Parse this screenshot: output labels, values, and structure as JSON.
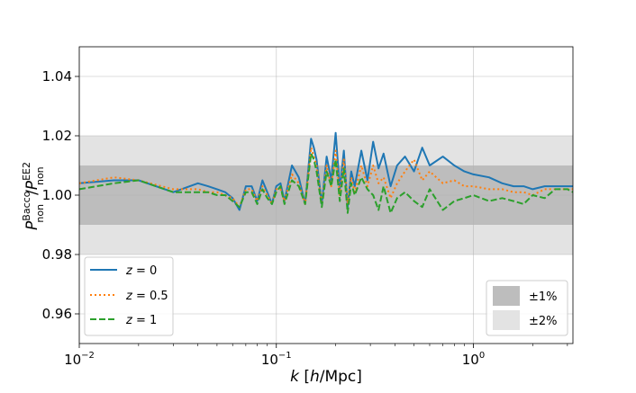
{
  "chart_data": {
    "type": "line",
    "title": "",
    "xlabel": {
      "k": "k",
      "rest": " [",
      "h": "h",
      "tail": "/Mpc]"
    },
    "ylabel": {
      "P": "P",
      "sup": "Bacco",
      "sub": "non",
      "slash": "/",
      "P2": "P",
      "sup2": "EE2",
      "sub2": "non"
    },
    "x_scale": "log",
    "xlim": [
      0.01,
      3.2
    ],
    "ylim": [
      0.95,
      1.05
    ],
    "x_ticks": [
      {
        "value": 0.01,
        "base": "10",
        "exp": "−2"
      },
      {
        "value": 0.1,
        "base": "10",
        "exp": "−1"
      },
      {
        "value": 1,
        "base": "10",
        "exp": "0"
      }
    ],
    "y_ticks": [
      0.96,
      0.98,
      1.0,
      1.02,
      1.04
    ],
    "y_tick_labels": [
      "0.96",
      "0.98",
      "1.00",
      "1.02",
      "1.04"
    ],
    "grid": true,
    "bands": [
      {
        "name": "±1%",
        "lower": 0.99,
        "upper": 1.01,
        "color": "#bdbdbd"
      },
      {
        "name": "±2%",
        "lower": 0.98,
        "upper": 1.02,
        "color": "#e3e3e3"
      }
    ],
    "legend_lines_position": "lower-left",
    "legend_bands_position": "lower-right",
    "series": [
      {
        "name": "z = 0",
        "legend": {
          "var": "z",
          "eq": " = 0"
        },
        "color": "#1f77b4",
        "dash": "solid",
        "x": [
          0.01,
          0.015,
          0.02,
          0.03,
          0.04,
          0.045,
          0.05,
          0.055,
          0.06,
          0.065,
          0.07,
          0.075,
          0.08,
          0.085,
          0.09,
          0.095,
          0.1,
          0.105,
          0.11,
          0.12,
          0.13,
          0.14,
          0.15,
          0.155,
          0.16,
          0.17,
          0.18,
          0.19,
          0.2,
          0.21,
          0.22,
          0.23,
          0.24,
          0.25,
          0.27,
          0.29,
          0.31,
          0.33,
          0.35,
          0.38,
          0.41,
          0.45,
          0.5,
          0.55,
          0.6,
          0.7,
          0.8,
          0.9,
          1.0,
          1.2,
          1.4,
          1.6,
          1.8,
          2.0,
          2.3,
          2.6,
          3.0,
          3.2
        ],
        "y": [
          1.004,
          1.005,
          1.005,
          1.001,
          1.004,
          1.003,
          1.002,
          1.001,
          0.999,
          0.995,
          1.003,
          1.003,
          0.998,
          1.005,
          1.001,
          0.997,
          1.003,
          1.004,
          0.998,
          1.01,
          1.006,
          0.997,
          1.019,
          1.016,
          1.012,
          0.997,
          1.013,
          1.005,
          1.021,
          1.002,
          1.015,
          0.996,
          1.008,
          1.003,
          1.015,
          1.005,
          1.018,
          1.009,
          1.014,
          1.003,
          1.01,
          1.013,
          1.008,
          1.016,
          1.01,
          1.013,
          1.01,
          1.008,
          1.007,
          1.006,
          1.004,
          1.003,
          1.003,
          1.002,
          1.003,
          1.003,
          1.003,
          1.003
        ]
      },
      {
        "name": "z = 0.5",
        "legend": {
          "var": "z",
          "eq": " = 0.5"
        },
        "color": "#ff7f0e",
        "dash": "dotted",
        "x": [
          0.01,
          0.015,
          0.02,
          0.03,
          0.04,
          0.045,
          0.05,
          0.055,
          0.06,
          0.065,
          0.07,
          0.075,
          0.08,
          0.085,
          0.09,
          0.095,
          0.1,
          0.105,
          0.11,
          0.12,
          0.13,
          0.14,
          0.15,
          0.155,
          0.16,
          0.17,
          0.18,
          0.19,
          0.2,
          0.21,
          0.22,
          0.23,
          0.24,
          0.25,
          0.27,
          0.29,
          0.31,
          0.33,
          0.35,
          0.38,
          0.41,
          0.45,
          0.5,
          0.55,
          0.6,
          0.7,
          0.8,
          0.9,
          1.0,
          1.2,
          1.4,
          1.6,
          1.8,
          2.0,
          2.3,
          2.6,
          3.0,
          3.2
        ],
        "y": [
          1.004,
          1.006,
          1.005,
          1.002,
          1.002,
          1.001,
          1.001,
          1.0,
          0.999,
          0.996,
          1.002,
          1.002,
          0.998,
          1.003,
          1.0,
          0.997,
          1.002,
          1.002,
          0.998,
          1.007,
          1.004,
          0.997,
          1.016,
          1.013,
          1.01,
          0.997,
          1.01,
          1.003,
          1.015,
          1.0,
          1.012,
          0.997,
          1.006,
          1.001,
          1.01,
          1.003,
          1.01,
          1.004,
          1.006,
          0.999,
          1.004,
          1.008,
          1.012,
          1.005,
          1.008,
          1.004,
          1.005,
          1.003,
          1.003,
          1.002,
          1.002,
          1.001,
          1.001,
          1.0,
          1.002,
          1.002,
          1.002,
          1.002
        ]
      },
      {
        "name": "z = 1",
        "legend": {
          "var": "z",
          "eq": " = 1"
        },
        "color": "#2ca02c",
        "dash": "dashed",
        "x": [
          0.01,
          0.015,
          0.02,
          0.03,
          0.04,
          0.045,
          0.05,
          0.055,
          0.06,
          0.065,
          0.07,
          0.075,
          0.08,
          0.085,
          0.09,
          0.095,
          0.1,
          0.105,
          0.11,
          0.12,
          0.13,
          0.14,
          0.15,
          0.155,
          0.16,
          0.17,
          0.18,
          0.19,
          0.2,
          0.21,
          0.22,
          0.23,
          0.24,
          0.25,
          0.27,
          0.29,
          0.31,
          0.33,
          0.35,
          0.38,
          0.41,
          0.45,
          0.5,
          0.55,
          0.6,
          0.7,
          0.8,
          0.9,
          1.0,
          1.2,
          1.4,
          1.6,
          1.8,
          2.0,
          2.3,
          2.6,
          3.0,
          3.2
        ],
        "y": [
          1.002,
          1.004,
          1.005,
          1.001,
          1.001,
          1.001,
          1.0,
          1.0,
          0.998,
          0.996,
          1.001,
          1.001,
          0.997,
          1.002,
          0.999,
          0.997,
          1.001,
          1.003,
          0.997,
          1.005,
          1.003,
          0.997,
          1.014,
          1.012,
          1.008,
          0.996,
          1.008,
          1.003,
          1.012,
          0.998,
          1.009,
          0.994,
          1.004,
          1.0,
          1.006,
          1.002,
          1.0,
          0.995,
          1.003,
          0.994,
          0.999,
          1.001,
          0.998,
          0.996,
          1.002,
          0.995,
          0.998,
          0.999,
          1.0,
          0.998,
          0.999,
          0.998,
          0.997,
          1.0,
          0.999,
          1.002,
          1.002,
          1.001
        ]
      }
    ]
  }
}
